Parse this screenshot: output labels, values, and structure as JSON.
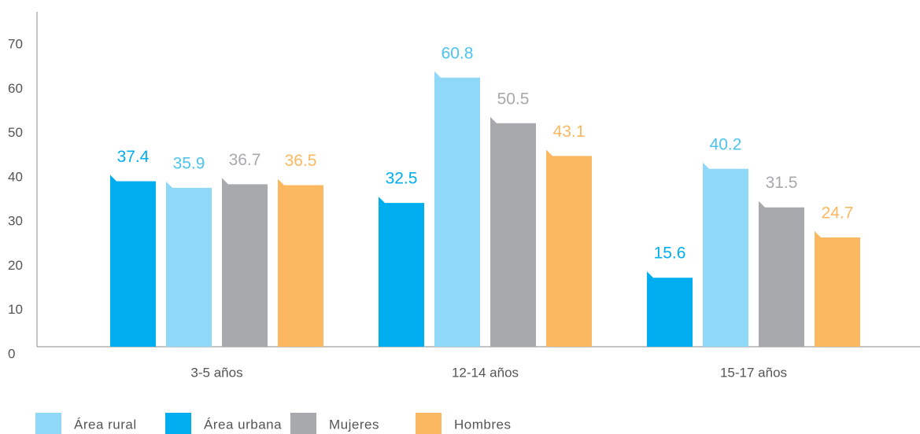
{
  "chart_data": {
    "type": "bar",
    "categories": [
      "3-5 años",
      "12-14 años",
      "15-17 años"
    ],
    "series": [
      {
        "name": "Área rural",
        "color": "#8fd8f7",
        "label_color": "#4cc4ee",
        "values": [
          35.9,
          60.8,
          40.2
        ]
      },
      {
        "name": "Área urbana",
        "color": "#00aeef",
        "label_color": "#00aeef",
        "values": [
          37.4,
          32.5,
          15.6
        ]
      },
      {
        "name": "Mujeres",
        "color": "#a7a9ac",
        "label_color": "#a7a9ac",
        "values": [
          36.7,
          50.5,
          31.5
        ]
      },
      {
        "name": "Hombres",
        "color": "#fbb861",
        "label_color": "#fbb861",
        "values": [
          36.5,
          43.1,
          24.7
        ]
      }
    ],
    "ylim": [
      0,
      70
    ],
    "yticks": [
      0,
      10,
      20,
      30,
      40,
      50,
      60,
      70
    ],
    "grid": false,
    "legend": "bottom-left"
  }
}
